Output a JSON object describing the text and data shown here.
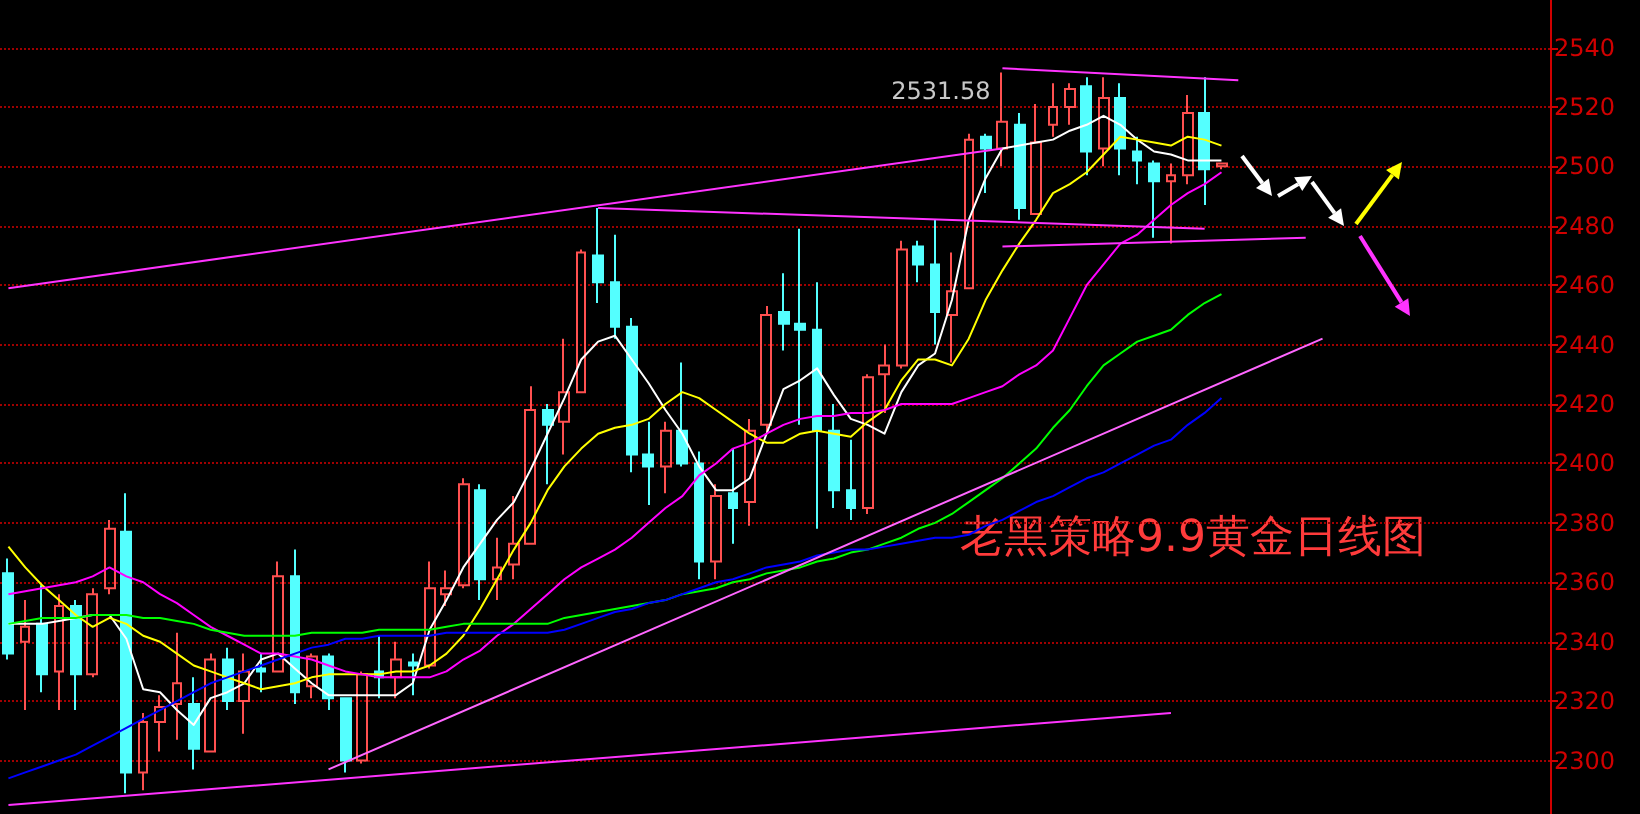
{
  "chart_data": {
    "type": "candlestick",
    "annotations": [
      "2531.58",
      "老黑策略9.9黄金日线图"
    ],
    "categories": [
      null,
      null,
      null,
      null,
      null,
      null,
      null,
      null,
      null,
      null,
      null,
      null,
      null,
      null,
      null,
      null,
      null,
      null,
      null,
      null,
      null,
      null,
      null,
      null,
      null,
      null,
      null,
      null,
      null,
      null,
      null,
      null,
      null,
      null,
      null,
      null,
      null,
      null,
      null,
      null,
      null,
      null,
      null,
      null,
      null,
      null,
      null,
      null,
      null,
      null,
      null,
      null,
      null,
      null,
      null,
      null,
      null,
      null,
      null,
      null,
      null,
      null,
      null,
      null,
      null,
      null,
      null,
      null,
      null,
      null,
      null,
      null,
      null,
      null,
      null,
      null,
      null,
      null,
      null,
      null,
      null,
      null,
      null,
      null,
      null,
      null,
      null,
      null,
      null,
      null,
      null,
      null
    ],
    "ohlc": [
      [
        2363,
        2368,
        2334,
        2336
      ],
      [
        2340,
        2354,
        2317,
        2345
      ],
      [
        2346,
        2359,
        2323,
        2329
      ],
      [
        2330,
        2356,
        2317,
        2352
      ],
      [
        2352,
        2354,
        2317,
        2329
      ],
      [
        2329,
        2358,
        2328,
        2356
      ],
      [
        2358,
        2381,
        2356,
        2378
      ],
      [
        2377,
        2390,
        2289,
        2296
      ],
      [
        2296,
        2316,
        2290,
        2313
      ],
      [
        2313,
        2322,
        2303,
        2318
      ],
      [
        2319,
        2343,
        2307,
        2326
      ],
      [
        2319,
        2328,
        2297,
        2304
      ],
      [
        2303,
        2336,
        2303,
        2334
      ],
      [
        2334,
        2338,
        2317,
        2320
      ],
      [
        2320,
        2336,
        2309,
        2330
      ],
      [
        2331,
        2336,
        2323,
        2330
      ],
      [
        2330,
        2367,
        2330,
        2362
      ],
      [
        2362,
        2371,
        2319,
        2323
      ],
      [
        2325,
        2336,
        2321,
        2335
      ],
      [
        2335,
        2336,
        2317,
        2321
      ],
      [
        2321,
        2321,
        2296,
        2300
      ],
      [
        2300,
        2330,
        2299,
        2329
      ],
      [
        2330,
        2342,
        2321,
        2328
      ],
      [
        2328,
        2340,
        2321,
        2334
      ],
      [
        2333,
        2336,
        2322,
        2332
      ],
      [
        2332,
        2367,
        2331,
        2358
      ],
      [
        2356,
        2364,
        2352,
        2358
      ],
      [
        2359,
        2395,
        2358,
        2393
      ],
      [
        2391,
        2393,
        2354,
        2361
      ],
      [
        2361,
        2375,
        2354,
        2365
      ],
      [
        2366,
        2389,
        2361,
        2373
      ],
      [
        2373,
        2426,
        2373,
        2418
      ],
      [
        2418,
        2420,
        2393,
        2413
      ],
      [
        2414,
        2442,
        2403,
        2424
      ],
      [
        2424,
        2472,
        2424,
        2471
      ],
      [
        2470,
        2486,
        2454,
        2461
      ],
      [
        2461,
        2477,
        2442,
        2446
      ],
      [
        2446,
        2449,
        2397,
        2403
      ],
      [
        2403,
        2414,
        2386,
        2399
      ],
      [
        2399,
        2414,
        2390,
        2411
      ],
      [
        2411,
        2434,
        2399,
        2400
      ],
      [
        2400,
        2404,
        2361,
        2367
      ],
      [
        2367,
        2393,
        2361,
        2389
      ],
      [
        2390,
        2405,
        2373,
        2385
      ],
      [
        2387,
        2415,
        2379,
        2411
      ],
      [
        2413,
        2453,
        2410,
        2450
      ],
      [
        2451,
        2464,
        2438,
        2447
      ],
      [
        2447,
        2479,
        2413,
        2445
      ],
      [
        2445,
        2461,
        2378,
        2411
      ],
      [
        2411,
        2420,
        2385,
        2391
      ],
      [
        2391,
        2408,
        2381,
        2385
      ],
      [
        2385,
        2430,
        2383,
        2429
      ],
      [
        2430,
        2440,
        2417,
        2433
      ],
      [
        2433,
        2475,
        2432,
        2472
      ],
      [
        2473,
        2475,
        2461,
        2467
      ],
      [
        2467,
        2482,
        2440,
        2451
      ],
      [
        2450,
        2471,
        2434,
        2458
      ],
      [
        2459,
        2511,
        2459,
        2509
      ],
      [
        2510,
        2511,
        2491,
        2506
      ],
      [
        2506,
        2531.58,
        2500,
        2515
      ],
      [
        2514,
        2518,
        2482,
        2486
      ],
      [
        2484,
        2521,
        2484,
        2508
      ],
      [
        2514,
        2528,
        2510,
        2520
      ],
      [
        2520,
        2528,
        2514,
        2526
      ],
      [
        2527,
        2530,
        2497,
        2505
      ],
      [
        2506,
        2530,
        2500,
        2523
      ],
      [
        2523,
        2528,
        2497,
        2506
      ],
      [
        2505,
        2510,
        2494,
        2502
      ],
      [
        2501,
        2502,
        2476,
        2495
      ],
      [
        2495,
        2501,
        2474,
        2497
      ],
      [
        2497,
        2524,
        2494,
        2518
      ],
      [
        2518,
        2530,
        2487,
        2499
      ],
      [
        2500,
        2501,
        2499,
        2501
      ],
      null,
      null,
      null,
      null,
      null,
      null,
      null,
      null,
      null,
      null,
      null,
      null,
      null,
      null,
      null,
      null,
      null,
      null,
      null
    ],
    "series": [
      {
        "type": "line",
        "color": "#ffffff",
        "values": [
          2346,
          2346,
          2346,
          2347,
          2348,
          2349,
          2349,
          2341,
          2324,
          2323,
          2317,
          2312,
          2321,
          2323,
          2326,
          2334,
          2336,
          2331,
          2326,
          2322,
          2322,
          2322,
          2322,
          2322,
          2326,
          2344,
          2354,
          2365,
          2373,
          2381,
          2387,
          2398,
          2410,
          2422,
          2435,
          2441,
          2443,
          2435,
          2427,
          2418,
          2410,
          2399,
          2391,
          2391,
          2395,
          2410,
          2425,
          2428,
          2432,
          2423,
          2415,
          2413,
          2410,
          2424,
          2433,
          2437,
          2455,
          2482,
          2496,
          2506,
          2507,
          2508,
          2509,
          2512,
          2514,
          2517,
          2514,
          2509,
          2505,
          2504,
          2502,
          2502,
          2502,
          null,
          null,
          null,
          null,
          null,
          null,
          null,
          null,
          null,
          null,
          null,
          null,
          null,
          null,
          null,
          null,
          null,
          null,
          null
        ]
      },
      {
        "type": "line",
        "color": "#ffff00",
        "values": [
          2372,
          2365,
          2359,
          2354,
          2349,
          2345,
          2348,
          2346,
          2342,
          2340,
          2336,
          2332,
          2330,
          2328,
          2326,
          2324,
          2325,
          2326,
          2328,
          2329,
          2329,
          2329,
          2329,
          2330,
          2330,
          2332,
          2336,
          2342,
          2351,
          2361,
          2371,
          2380,
          2391,
          2399,
          2405,
          2410,
          2412,
          2413,
          2415,
          2420,
          2424,
          2422,
          2418,
          2414,
          2410,
          2407,
          2407,
          2410,
          2411,
          2410,
          2409,
          2414,
          2418,
          2428,
          2435,
          2435,
          2433,
          2442,
          2455,
          2465,
          2474,
          2482,
          2491,
          2494,
          2498,
          2504,
          2510,
          2509,
          2508,
          2507,
          2510,
          2509,
          2507,
          null,
          null,
          null,
          null,
          null,
          null,
          null,
          null,
          null,
          null,
          null,
          null,
          null,
          null,
          null,
          null,
          null,
          null,
          null
        ]
      },
      {
        "type": "line",
        "color": "#ff00ff",
        "values": [
          2356,
          2357,
          2358,
          2359,
          2360,
          2362,
          2365,
          2362,
          2360,
          2356,
          2353,
          2349,
          2345,
          2342,
          2339,
          2336,
          2336,
          2335,
          2334,
          2332,
          2330,
          2329,
          2328,
          2328,
          2328,
          2328,
          2330,
          2334,
          2337,
          2342,
          2346,
          2351,
          2356,
          2361,
          2365,
          2368,
          2371,
          2375,
          2380,
          2385,
          2389,
          2396,
          2400,
          2405,
          2407,
          2410,
          2413,
          2415,
          2416,
          2416,
          2417,
          2417,
          2418,
          2420,
          2420,
          2420,
          2420,
          2422,
          2424,
          2426,
          2430,
          2433,
          2438,
          2449,
          2460,
          2467,
          2474,
          2477,
          2482,
          2487,
          2491,
          2494,
          2498,
          null,
          null,
          null,
          null,
          null,
          null,
          null,
          null,
          null,
          null,
          null,
          null,
          null,
          null,
          null,
          null,
          null,
          null,
          null
        ]
      },
      {
        "type": "line",
        "color": "#00ff00",
        "values": [
          2346,
          2347,
          2348,
          2348,
          2348,
          2349,
          2349,
          2349,
          2348,
          2348,
          2347,
          2346,
          2344,
          2343,
          2342,
          2342,
          2342,
          2342,
          2343,
          2343,
          2343,
          2343,
          2344,
          2344,
          2344,
          2344,
          2345,
          2346,
          2346,
          2346,
          2346,
          2346,
          2346,
          2348,
          2349,
          2350,
          2351,
          2352,
          2353,
          2354,
          2356,
          2357,
          2358,
          2360,
          2361,
          2363,
          2364,
          2365,
          2367,
          2368,
          2370,
          2371,
          2373,
          2375,
          2378,
          2380,
          2383,
          2387,
          2391,
          2395,
          2400,
          2405,
          2412,
          2418,
          2426,
          2433,
          2437,
          2441,
          2443,
          2445,
          2450,
          2454,
          2457,
          null,
          null,
          null,
          null,
          null,
          null,
          null,
          null,
          null,
          null,
          null,
          null,
          null,
          null,
          null,
          null,
          null,
          null,
          null
        ]
      },
      {
        "type": "line",
        "color": "#0000ff",
        "values": [
          2294,
          2296,
          2298,
          2300,
          2302,
          2305,
          2308,
          2311,
          2314,
          2317,
          2320,
          2323,
          2326,
          2328,
          2330,
          2332,
          2334,
          2336,
          2338,
          2339,
          2341,
          2341,
          2342,
          2342,
          2342,
          2342,
          2343,
          2343,
          2343,
          2343,
          2343,
          2343,
          2343,
          2344,
          2346,
          2348,
          2350,
          2351,
          2353,
          2354,
          2356,
          2358,
          2360,
          2361,
          2363,
          2365,
          2366,
          2367,
          2369,
          2370,
          2371,
          2371,
          2372,
          2373,
          2374,
          2375,
          2375,
          2376,
          2379,
          2381,
          2384,
          2387,
          2389,
          2392,
          2395,
          2397,
          2400,
          2403,
          2406,
          2408,
          2413,
          2417,
          2422,
          null,
          null,
          null,
          null,
          null,
          null,
          null,
          null,
          null,
          null,
          null,
          null,
          null,
          null,
          null,
          null,
          null,
          null,
          null
        ]
      },
      {
        "type": "line",
        "color": "#ff33ff",
        "values": [
          2459,
          null,
          null,
          null,
          null,
          null,
          null,
          null,
          null,
          null,
          null,
          null,
          null,
          null,
          null,
          null,
          null,
          null,
          null,
          null,
          null,
          null,
          null,
          null,
          null,
          null,
          null,
          null,
          null,
          null,
          null,
          null,
          null,
          null,
          null,
          null,
          null,
          null,
          null,
          null,
          null,
          null,
          null,
          null,
          null,
          null,
          null,
          null,
          null,
          null,
          null,
          null,
          null,
          null,
          null,
          null,
          null,
          null,
          null,
          2506,
          null,
          null,
          null,
          null,
          null,
          null,
          null,
          null,
          null,
          null,
          null,
          null,
          null,
          null,
          null,
          null,
          null,
          null,
          null,
          null,
          null,
          null,
          null,
          null,
          null,
          null,
          null,
          null,
          null,
          null,
          null,
          null
        ]
      },
      {
        "type": "line",
        "color": "#ff33ff",
        "values": [
          null,
          null,
          null,
          null,
          null,
          null,
          null,
          null,
          null,
          null,
          null,
          null,
          null,
          null,
          null,
          null,
          null,
          null,
          null,
          null,
          null,
          null,
          null,
          null,
          null,
          null,
          null,
          null,
          null,
          null,
          null,
          null,
          null,
          null,
          null,
          null,
          null,
          null,
          null,
          null,
          null,
          null,
          null,
          null,
          null,
          null,
          null,
          null,
          null,
          null,
          null,
          null,
          null,
          null,
          null,
          null,
          null,
          null,
          null,
          2533,
          null,
          null,
          null,
          null,
          null,
          null,
          null,
          null,
          null,
          null,
          null,
          null,
          null,
          2529,
          null,
          null,
          null,
          null,
          null,
          null,
          null,
          null,
          null,
          null,
          null,
          null,
          null,
          null,
          null,
          null,
          null,
          null
        ]
      },
      {
        "type": "line",
        "color": "#ff33ff",
        "values": [
          null,
          null,
          null,
          null,
          null,
          null,
          null,
          null,
          null,
          null,
          null,
          null,
          null,
          null,
          null,
          null,
          null,
          null,
          null,
          null,
          null,
          null,
          null,
          null,
          null,
          null,
          null,
          null,
          null,
          null,
          null,
          null,
          null,
          null,
          null,
          2486,
          null,
          null,
          null,
          null,
          null,
          null,
          null,
          null,
          null,
          null,
          null,
          null,
          null,
          null,
          null,
          null,
          null,
          null,
          null,
          null,
          null,
          null,
          null,
          null,
          null,
          null,
          null,
          null,
          null,
          null,
          null,
          null,
          null,
          null,
          null,
          2479,
          null,
          null,
          null,
          null,
          null,
          null,
          null,
          null,
          null,
          null,
          null,
          null,
          null,
          null,
          null,
          null,
          null,
          null,
          null,
          null
        ]
      },
      {
        "type": "line",
        "color": "#ff33ff",
        "values": [
          null,
          null,
          null,
          null,
          null,
          null,
          null,
          null,
          null,
          null,
          null,
          null,
          null,
          null,
          null,
          null,
          null,
          null,
          null,
          null,
          null,
          null,
          null,
          null,
          null,
          null,
          null,
          null,
          null,
          null,
          null,
          null,
          null,
          null,
          null,
          null,
          null,
          null,
          null,
          null,
          null,
          null,
          null,
          null,
          null,
          null,
          null,
          null,
          null,
          null,
          null,
          null,
          null,
          null,
          null,
          null,
          null,
          null,
          null,
          2473,
          null,
          null,
          null,
          null,
          null,
          null,
          null,
          null,
          null,
          null,
          null,
          null,
          null,
          null,
          null,
          null,
          null,
          2476,
          null,
          null,
          null,
          null,
          null,
          null,
          null,
          null,
          null,
          null,
          null,
          null,
          null,
          null
        ]
      },
      {
        "type": "line",
        "color": "#ff66ff",
        "values": [
          null,
          null,
          null,
          null,
          null,
          null,
          null,
          null,
          null,
          null,
          null,
          null,
          null,
          null,
          null,
          null,
          null,
          null,
          null,
          2297,
          null,
          null,
          null,
          null,
          null,
          null,
          null,
          null,
          null,
          null,
          null,
          null,
          null,
          null,
          null,
          null,
          null,
          null,
          null,
          null,
          null,
          null,
          null,
          null,
          null,
          null,
          null,
          null,
          null,
          null,
          null,
          null,
          null,
          null,
          null,
          null,
          null,
          null,
          null,
          null,
          null,
          null,
          null,
          null,
          null,
          null,
          null,
          null,
          null,
          null,
          null,
          null,
          null,
          null,
          null,
          null,
          null,
          null,
          2442,
          null,
          null,
          null,
          null,
          null,
          null,
          null,
          null,
          null,
          null,
          null,
          null,
          null
        ]
      },
      {
        "type": "line",
        "color": "#ff33ff",
        "values": [
          2285,
          null,
          null,
          null,
          null,
          null,
          null,
          null,
          null,
          null,
          null,
          null,
          null,
          null,
          null,
          null,
          null,
          null,
          null,
          null,
          null,
          null,
          null,
          null,
          null,
          null,
          null,
          null,
          null,
          null,
          null,
          null,
          null,
          null,
          null,
          null,
          null,
          null,
          null,
          null,
          null,
          null,
          null,
          null,
          null,
          null,
          null,
          null,
          null,
          null,
          null,
          null,
          null,
          null,
          null,
          null,
          null,
          null,
          null,
          null,
          null,
          null,
          null,
          null,
          null,
          null,
          null,
          null,
          null,
          2316,
          null,
          null,
          null,
          null,
          null,
          null,
          null,
          null,
          null,
          null,
          null,
          null,
          null,
          null,
          null,
          null,
          null,
          null,
          null,
          null,
          null,
          null
        ]
      }
    ],
    "ylim": [
      2282,
      2556
    ],
    "yticks": [
      2300,
      2320,
      2340,
      2360,
      2380,
      2400,
      2420,
      2440,
      2460,
      2480,
      2500,
      2520,
      2540
    ],
    "grid": "y",
    "tick_labels": "y"
  }
}
